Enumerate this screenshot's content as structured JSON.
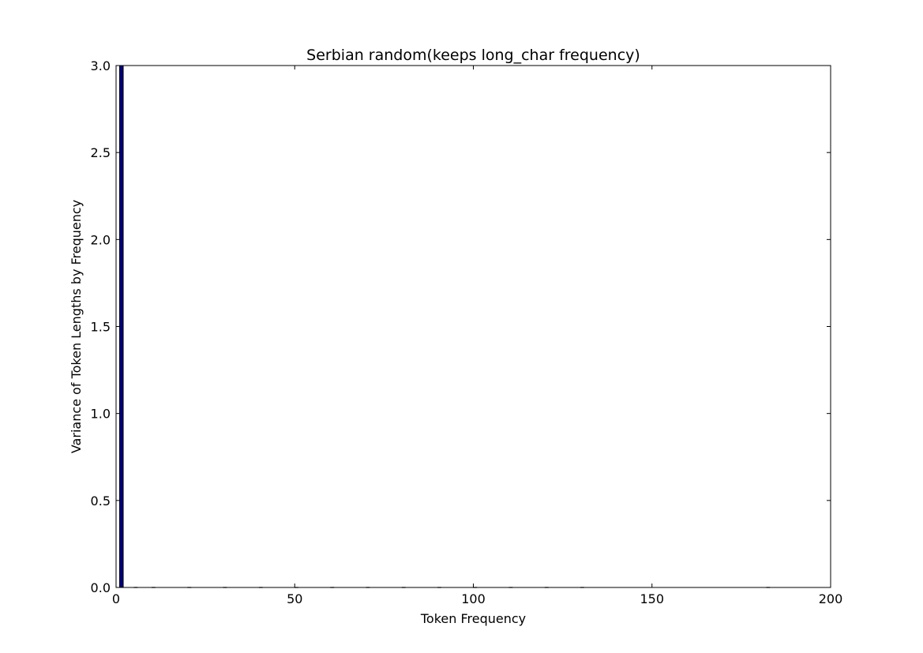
{
  "chart_data": {
    "type": "bar",
    "title": "Serbian random(keeps long_char frequency)",
    "xlabel": "Token Frequency",
    "ylabel": "Variance of Token Lengths by Frequency",
    "xlim": [
      0,
      200
    ],
    "ylim": [
      0,
      3.0
    ],
    "xticks": [
      0,
      50,
      100,
      150,
      200
    ],
    "xtick_labels": [
      "0",
      "50",
      "100",
      "150",
      "200"
    ],
    "yticks": [
      0.0,
      0.5,
      1.0,
      1.5,
      2.0,
      2.5,
      3.0
    ],
    "ytick_labels": [
      "0.0",
      "0.5",
      "1.0",
      "1.5",
      "2.0",
      "2.5",
      "3.0"
    ],
    "grid": false,
    "bar_width": 1,
    "bar_color": "#000080",
    "x": [
      1,
      5,
      10,
      20,
      30,
      40,
      50,
      60,
      70,
      80,
      90,
      100,
      110,
      120,
      130,
      182
    ],
    "values": [
      3.0,
      0.0,
      0.0,
      0.0,
      0.0,
      0.0,
      0.0,
      0.0,
      0.0,
      0.0,
      0.0,
      0.0,
      0.0,
      0.0,
      0.0,
      0.0
    ]
  }
}
